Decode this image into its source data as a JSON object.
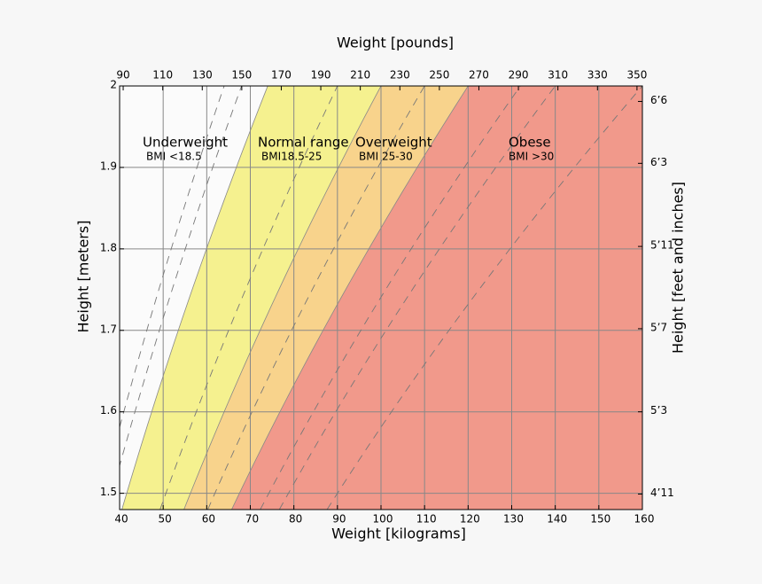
{
  "chart_data": {
    "type": "bmi-chart",
    "xlabel": "Weight [kilograms]",
    "x2label": "Weight [pounds]",
    "ylabel": "Height [meters]",
    "y2label": "Height [feet and inches]",
    "xlim": [
      40,
      160
    ],
    "ylim": [
      1.48,
      2
    ],
    "xticks": [
      40,
      50,
      60,
      70,
      80,
      90,
      100,
      110,
      120,
      130,
      140,
      150,
      160
    ],
    "yticks": [
      1.5,
      1.6,
      1.7,
      1.8,
      1.9,
      2
    ],
    "x2ticks": [
      {
        "value": 40.82,
        "label": "90"
      },
      {
        "value": 49.9,
        "label": "110"
      },
      {
        "value": 58.97,
        "label": "130"
      },
      {
        "value": 68.04,
        "label": "150"
      },
      {
        "value": 77.11,
        "label": "170"
      },
      {
        "value": 86.18,
        "label": "190"
      },
      {
        "value": 95.25,
        "label": "210"
      },
      {
        "value": 104.33,
        "label": "230"
      },
      {
        "value": 113.4,
        "label": "250"
      },
      {
        "value": 122.47,
        "label": "270"
      },
      {
        "value": 131.54,
        "label": "290"
      },
      {
        "value": 140.61,
        "label": "310"
      },
      {
        "value": 149.69,
        "label": "330"
      },
      {
        "value": 158.76,
        "label": "350"
      }
    ],
    "y2ticks": [
      {
        "value": 1.981,
        "label": "6’6"
      },
      {
        "value": 1.905,
        "label": "6’3"
      },
      {
        "value": 1.803,
        "label": "5’11"
      },
      {
        "value": 1.702,
        "label": "5’7"
      },
      {
        "value": 1.6,
        "label": "5’3"
      },
      {
        "value": 1.499,
        "label": "4’11"
      }
    ],
    "grid": true,
    "zones": [
      {
        "name": "Underweight",
        "label": "BMI <18.5",
        "bmi_max": 18.5,
        "color": "#fbfbfb"
      },
      {
        "name": "Normal range",
        "label": "BMI18.5-25",
        "bmi_max": 25,
        "color": "#f5f18f"
      },
      {
        "name": "Overweight",
        "label": "BMI 25-30",
        "bmi_max": 30,
        "color": "#f8d38c"
      },
      {
        "name": "Obese",
        "label": "BMI >30",
        "color": "#f1998b"
      }
    ],
    "dashed_bmi": [
      16,
      17,
      22.5,
      27.5,
      33,
      35,
      40
    ]
  }
}
